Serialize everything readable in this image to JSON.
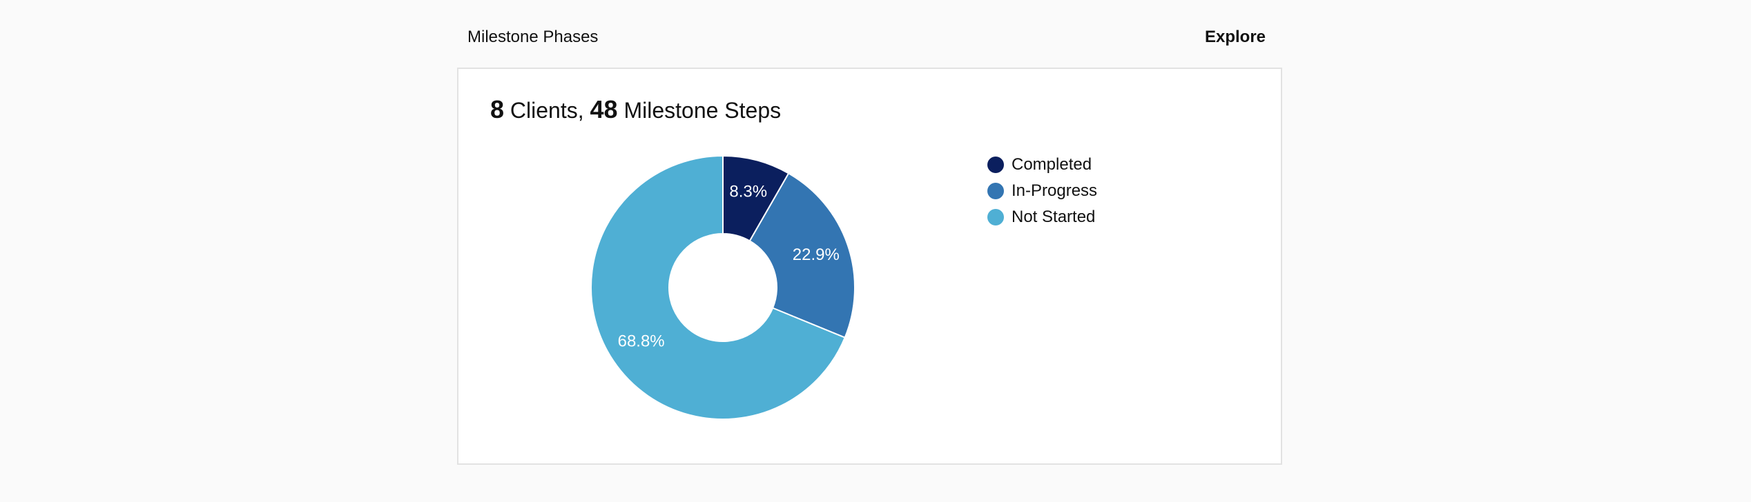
{
  "header": {
    "title": "Milestone Phases",
    "explore_label": "Explore"
  },
  "summary": {
    "clients_count": "8",
    "clients_label": " Clients, ",
    "steps_count": "48",
    "steps_label": " Milestone Steps"
  },
  "chart_data": {
    "type": "pie",
    "donut": true,
    "categories": [
      "Completed",
      "In-Progress",
      "Not Started"
    ],
    "values": [
      8.3,
      22.9,
      68.8
    ],
    "value_labels": [
      "8.3%",
      "22.9%",
      "68.8%"
    ],
    "colors": [
      "#0b1f5e",
      "#3375b2",
      "#4fafd4"
    ],
    "legend_position": "right",
    "title": "",
    "xlabel": "",
    "ylabel": ""
  }
}
